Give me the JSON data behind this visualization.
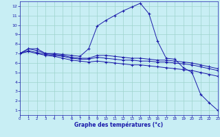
{
  "title": "Graphe des températures (°c)",
  "background_color": "#c8eef4",
  "grid_color": "#9dd4cc",
  "line_color": "#1a1aaa",
  "x_ticks": [
    0,
    1,
    2,
    3,
    4,
    5,
    6,
    7,
    8,
    9,
    10,
    11,
    12,
    13,
    14,
    15,
    16,
    17,
    18,
    19,
    20,
    21,
    22,
    23
  ],
  "y_ticks": [
    1,
    2,
    3,
    4,
    5,
    6,
    7,
    8,
    9,
    10,
    11,
    12
  ],
  "xlim": [
    0,
    23
  ],
  "ylim": [
    0.5,
    12.5
  ],
  "lines": [
    [
      7.0,
      7.5,
      7.5,
      7.0,
      7.0,
      6.9,
      6.8,
      6.7,
      7.5,
      9.9,
      10.5,
      11.0,
      11.5,
      11.9,
      12.3,
      11.2,
      8.3,
      6.5,
      6.4,
      5.5,
      5.0,
      2.7,
      1.8,
      1.0
    ],
    [
      7.0,
      7.5,
      7.3,
      7.0,
      6.9,
      6.8,
      6.6,
      6.5,
      6.5,
      6.8,
      6.8,
      6.7,
      6.6,
      6.5,
      6.5,
      6.4,
      6.3,
      6.3,
      6.2,
      6.1,
      6.0,
      5.8,
      5.6,
      5.4
    ],
    [
      7.0,
      7.3,
      7.1,
      6.9,
      6.8,
      6.7,
      6.5,
      6.4,
      6.4,
      6.6,
      6.5,
      6.4,
      6.3,
      6.3,
      6.2,
      6.2,
      6.1,
      6.1,
      6.0,
      5.9,
      5.8,
      5.6,
      5.4,
      5.2
    ],
    [
      7.0,
      7.2,
      7.0,
      6.8,
      6.7,
      6.5,
      6.3,
      6.2,
      6.1,
      6.2,
      6.1,
      6.0,
      5.9,
      5.8,
      5.8,
      5.7,
      5.6,
      5.5,
      5.4,
      5.3,
      5.2,
      5.0,
      4.8,
      4.6
    ]
  ]
}
